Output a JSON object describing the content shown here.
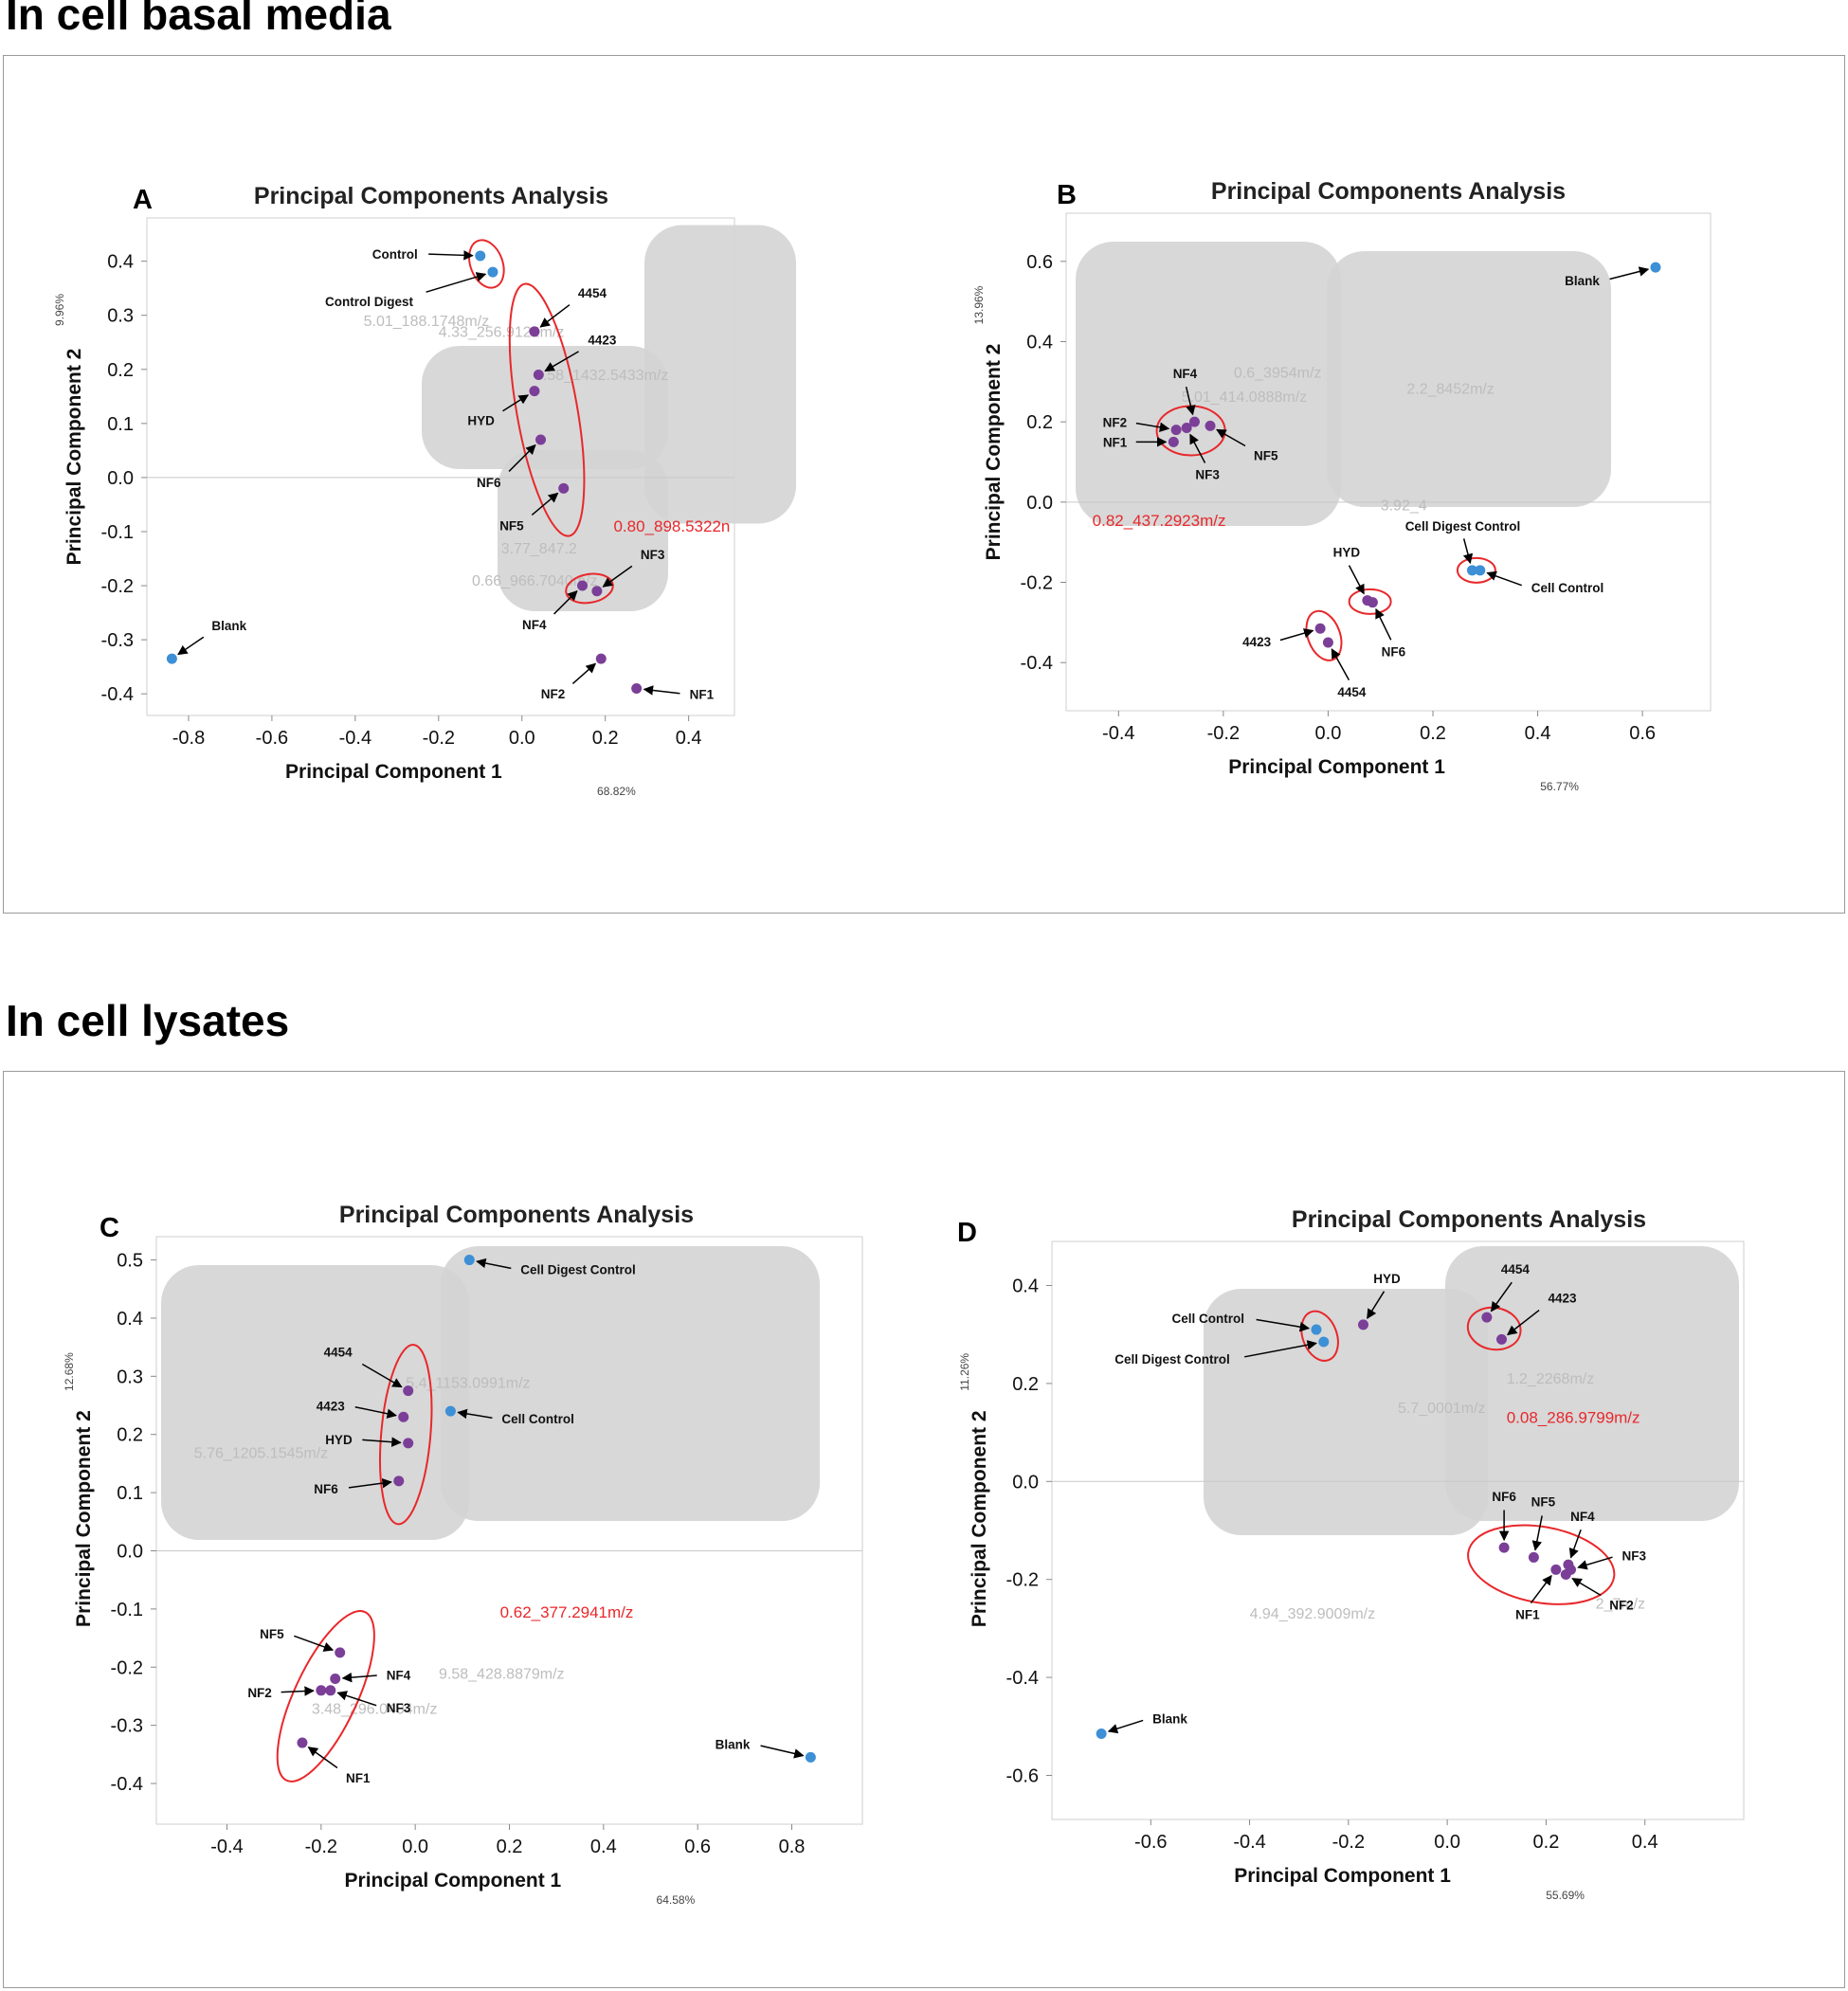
{
  "sections": {
    "top": "In cell basal media",
    "bottom": "In cell lysates"
  },
  "colors": {
    "control": "#3d8fd6",
    "treatment": "#7b3f98",
    "ellipse": "#e8282b",
    "cloud": "#d2d2d2"
  },
  "chart_data": [
    {
      "panel": "A",
      "type": "scatter",
      "title": "Principal Components Analysis",
      "xlabel": "Principal Component 1",
      "ylabel": "Principal Component 2",
      "x_variance": "68.82%",
      "y_variance": "9.96%",
      "xlim": [
        -0.9,
        0.51
      ],
      "ylim": [
        -0.44,
        0.48
      ],
      "xticks": [
        -0.8,
        -0.6,
        -0.4,
        -0.2,
        0.0,
        0.2,
        0.4
      ],
      "yticks": [
        0.4,
        0.3,
        0.2,
        0.1,
        0.0,
        -0.1,
        -0.2,
        -0.3,
        -0.4
      ],
      "highlight_label": "0.80_898.5322n",
      "ghost_labels": [
        "5.01_188.1748m/z",
        "4.33_256.9122m/z",
        "3.58_1432.5433m/z",
        "0.66_966.7040m/z",
        "3.77_847.2"
      ],
      "points": [
        {
          "label": "Control",
          "x": -0.1,
          "y": 0.41,
          "group": "control"
        },
        {
          "label": "Control Digest",
          "x": -0.07,
          "y": 0.38,
          "group": "control"
        },
        {
          "label": "Blank",
          "x": -0.84,
          "y": -0.335,
          "group": "control"
        },
        {
          "label": "4454",
          "x": 0.03,
          "y": 0.27,
          "group": "treatment"
        },
        {
          "label": "4423",
          "x": 0.04,
          "y": 0.19,
          "group": "treatment"
        },
        {
          "label": "HYD",
          "x": 0.03,
          "y": 0.16,
          "group": "treatment"
        },
        {
          "label": "NF6",
          "x": 0.045,
          "y": 0.07,
          "group": "treatment"
        },
        {
          "label": "NF5",
          "x": 0.1,
          "y": -0.02,
          "group": "treatment"
        },
        {
          "label": "NF3",
          "x": 0.18,
          "y": -0.21,
          "group": "treatment"
        },
        {
          "label": "NF4",
          "x": 0.145,
          "y": -0.2,
          "group": "treatment"
        },
        {
          "label": "NF2",
          "x": 0.19,
          "y": -0.335,
          "group": "treatment"
        },
        {
          "label": "NF1",
          "x": 0.275,
          "y": -0.39,
          "group": "treatment"
        }
      ]
    },
    {
      "panel": "B",
      "type": "scatter",
      "title": "Principal Components Analysis",
      "xlabel": "Principal Component 1",
      "ylabel": "Principal Component 2",
      "x_variance": "56.77%",
      "y_variance": "13.96%",
      "xlim": [
        -0.5,
        0.73
      ],
      "ylim": [
        -0.52,
        0.72
      ],
      "xticks": [
        -0.4,
        -0.2,
        0.0,
        0.2,
        0.4,
        0.6
      ],
      "yticks": [
        0.6,
        0.4,
        0.2,
        0.0,
        -0.2,
        -0.4
      ],
      "highlight_label": "0.82_437.2923m/z",
      "ghost_labels": [
        "5.01_414.0888m/z",
        "2.2_8452m/z",
        "0.6_3954m/z",
        "3.92_4"
      ],
      "points": [
        {
          "label": "Blank",
          "x": 0.625,
          "y": 0.585,
          "group": "control"
        },
        {
          "label": "Cell Digest Control",
          "x": 0.275,
          "y": -0.17,
          "group": "control"
        },
        {
          "label": "Cell Control",
          "x": 0.29,
          "y": -0.17,
          "group": "control"
        },
        {
          "label": "NF4",
          "x": -0.255,
          "y": 0.2,
          "group": "treatment"
        },
        {
          "label": "NF2",
          "x": -0.29,
          "y": 0.18,
          "group": "treatment"
        },
        {
          "label": "NF1",
          "x": -0.295,
          "y": 0.15,
          "group": "treatment"
        },
        {
          "label": "NF3",
          "x": -0.27,
          "y": 0.185,
          "group": "treatment"
        },
        {
          "label": "NF5",
          "x": -0.225,
          "y": 0.19,
          "group": "treatment"
        },
        {
          "label": "HYD",
          "x": 0.075,
          "y": -0.245,
          "group": "treatment"
        },
        {
          "label": "NF6",
          "x": 0.085,
          "y": -0.25,
          "group": "treatment"
        },
        {
          "label": "4423",
          "x": -0.015,
          "y": -0.315,
          "group": "treatment"
        },
        {
          "label": "4454",
          "x": 0.0,
          "y": -0.35,
          "group": "treatment"
        }
      ]
    },
    {
      "panel": "C",
      "type": "scatter",
      "title": "Principal Components Analysis",
      "xlabel": "Principal Component 1",
      "ylabel": "Principal Component 2",
      "x_variance": "64.58%",
      "y_variance": "12.68%",
      "xlim": [
        -0.55,
        0.95
      ],
      "ylim": [
        -0.47,
        0.54
      ],
      "xticks": [
        -0.4,
        -0.2,
        0.0,
        0.2,
        0.4,
        0.6,
        0.8
      ],
      "yticks": [
        0.5,
        0.4,
        0.3,
        0.2,
        0.1,
        0.0,
        -0.1,
        -0.2,
        -0.3,
        -0.4
      ],
      "highlight_label": "0.62_377.2941m/z",
      "ghost_labels": [
        "5.76_1205.1545m/z",
        "9.58_428.8879m/z",
        "5.4_1153.0991m/z",
        "3.48_296.0404m/z"
      ],
      "points": [
        {
          "label": "Cell Digest Control",
          "x": 0.115,
          "y": 0.5,
          "group": "control"
        },
        {
          "label": "Cell Control",
          "x": 0.075,
          "y": 0.24,
          "group": "control"
        },
        {
          "label": "Blank",
          "x": 0.84,
          "y": -0.355,
          "group": "control"
        },
        {
          "label": "4454",
          "x": -0.015,
          "y": 0.275,
          "group": "treatment"
        },
        {
          "label": "4423",
          "x": -0.025,
          "y": 0.23,
          "group": "treatment"
        },
        {
          "label": "HYD",
          "x": -0.015,
          "y": 0.185,
          "group": "treatment"
        },
        {
          "label": "NF6",
          "x": -0.035,
          "y": 0.12,
          "group": "treatment"
        },
        {
          "label": "NF5",
          "x": -0.16,
          "y": -0.175,
          "group": "treatment"
        },
        {
          "label": "NF4",
          "x": -0.17,
          "y": -0.22,
          "group": "treatment"
        },
        {
          "label": "NF2",
          "x": -0.2,
          "y": -0.24,
          "group": "treatment"
        },
        {
          "label": "NF3",
          "x": -0.18,
          "y": -0.24,
          "group": "treatment"
        },
        {
          "label": "NF1",
          "x": -0.24,
          "y": -0.33,
          "group": "treatment"
        }
      ]
    },
    {
      "panel": "D",
      "type": "scatter",
      "title": "Principal Components Analysis",
      "xlabel": "Principal Component 1",
      "ylabel": "Principal Component 2",
      "x_variance": "55.69%",
      "y_variance": "11.26%",
      "xlim": [
        -0.8,
        0.6
      ],
      "ylim": [
        -0.69,
        0.49
      ],
      "xticks": [
        -0.6,
        -0.4,
        -0.2,
        0.0,
        0.2,
        0.4
      ],
      "yticks": [
        0.4,
        0.2,
        0.0,
        -0.2,
        -0.4,
        -0.6
      ],
      "highlight_label": "0.08_286.9799m/z",
      "ghost_labels": [
        "4.94_392.9009m/z",
        "5.7_0001m/z",
        "1.2_2268m/z",
        "2_7m/z"
      ],
      "points": [
        {
          "label": "Cell Control",
          "x": -0.265,
          "y": 0.31,
          "group": "control"
        },
        {
          "label": "Cell Digest Control",
          "x": -0.25,
          "y": 0.285,
          "group": "control"
        },
        {
          "label": "Blank",
          "x": -0.7,
          "y": -0.515,
          "group": "control"
        },
        {
          "label": "HYD",
          "x": -0.17,
          "y": 0.32,
          "group": "treatment"
        },
        {
          "label": "4454",
          "x": 0.08,
          "y": 0.335,
          "group": "treatment"
        },
        {
          "label": "4423",
          "x": 0.11,
          "y": 0.29,
          "group": "treatment"
        },
        {
          "label": "NF6",
          "x": 0.115,
          "y": -0.135,
          "group": "treatment"
        },
        {
          "label": "NF5",
          "x": 0.175,
          "y": -0.155,
          "group": "treatment"
        },
        {
          "label": "NF4",
          "x": 0.245,
          "y": -0.17,
          "group": "treatment"
        },
        {
          "label": "NF3",
          "x": 0.25,
          "y": -0.18,
          "group": "treatment"
        },
        {
          "label": "NF2",
          "x": 0.24,
          "y": -0.19,
          "group": "treatment"
        },
        {
          "label": "NF1",
          "x": 0.22,
          "y": -0.18,
          "group": "treatment"
        }
      ]
    }
  ]
}
